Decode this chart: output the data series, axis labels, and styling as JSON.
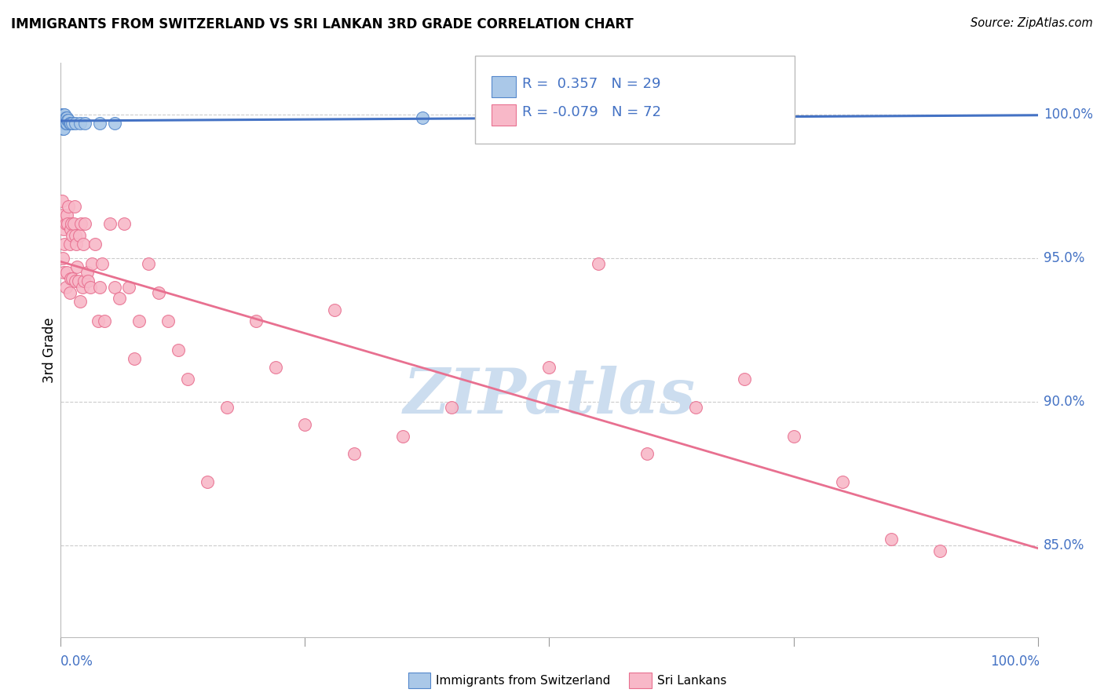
{
  "title": "IMMIGRANTS FROM SWITZERLAND VS SRI LANKAN 3RD GRADE CORRELATION CHART",
  "source": "Source: ZipAtlas.com",
  "ylabel": "3rd Grade",
  "ylabel_right_labels": [
    "100.0%",
    "95.0%",
    "90.0%",
    "85.0%"
  ],
  "ylabel_right_values": [
    1.0,
    0.95,
    0.9,
    0.85
  ],
  "xlim": [
    0.0,
    1.0
  ],
  "ylim": [
    0.818,
    1.018
  ],
  "legend_blue_r": "0.357",
  "legend_blue_n": "29",
  "legend_pink_r": "-0.079",
  "legend_pink_n": "72",
  "blue_scatter_x": [
    0.0005,
    0.001,
    0.001,
    0.0015,
    0.002,
    0.002,
    0.002,
    0.002,
    0.003,
    0.003,
    0.003,
    0.003,
    0.004,
    0.004,
    0.005,
    0.005,
    0.006,
    0.006,
    0.007,
    0.008,
    0.009,
    0.01,
    0.012,
    0.015,
    0.02,
    0.025,
    0.04,
    0.055,
    0.37
  ],
  "blue_scatter_y": [
    0.999,
    1.0,
    0.998,
    0.999,
    1.0,
    0.999,
    0.997,
    0.995,
    1.0,
    0.999,
    0.997,
    0.995,
    1.0,
    0.998,
    0.999,
    0.997,
    0.999,
    0.997,
    0.998,
    0.998,
    0.997,
    0.997,
    0.997,
    0.997,
    0.997,
    0.997,
    0.997,
    0.997,
    0.999
  ],
  "pink_scatter_x": [
    0.001,
    0.002,
    0.002,
    0.003,
    0.003,
    0.004,
    0.005,
    0.005,
    0.006,
    0.006,
    0.007,
    0.008,
    0.009,
    0.009,
    0.01,
    0.01,
    0.011,
    0.012,
    0.012,
    0.013,
    0.014,
    0.015,
    0.015,
    0.016,
    0.017,
    0.018,
    0.019,
    0.02,
    0.021,
    0.022,
    0.023,
    0.024,
    0.025,
    0.027,
    0.028,
    0.03,
    0.032,
    0.035,
    0.038,
    0.04,
    0.042,
    0.045,
    0.05,
    0.055,
    0.06,
    0.065,
    0.07,
    0.075,
    0.08,
    0.09,
    0.1,
    0.11,
    0.12,
    0.13,
    0.15,
    0.17,
    0.2,
    0.22,
    0.25,
    0.28,
    0.3,
    0.35,
    0.4,
    0.5,
    0.55,
    0.6,
    0.65,
    0.7,
    0.75,
    0.8,
    0.85,
    0.9
  ],
  "pink_scatter_y": [
    0.97,
    0.965,
    0.95,
    0.96,
    0.945,
    0.955,
    0.962,
    0.94,
    0.965,
    0.945,
    0.962,
    0.968,
    0.955,
    0.938,
    0.96,
    0.943,
    0.962,
    0.958,
    0.943,
    0.962,
    0.968,
    0.958,
    0.942,
    0.955,
    0.947,
    0.942,
    0.958,
    0.935,
    0.962,
    0.94,
    0.955,
    0.942,
    0.962,
    0.945,
    0.942,
    0.94,
    0.948,
    0.955,
    0.928,
    0.94,
    0.948,
    0.928,
    0.962,
    0.94,
    0.936,
    0.962,
    0.94,
    0.915,
    0.928,
    0.948,
    0.938,
    0.928,
    0.918,
    0.908,
    0.872,
    0.898,
    0.928,
    0.912,
    0.892,
    0.932,
    0.882,
    0.888,
    0.898,
    0.912,
    0.948,
    0.882,
    0.898,
    0.908,
    0.888,
    0.872,
    0.852,
    0.848
  ],
  "blue_color": "#aac8e8",
  "pink_color": "#f8b8c8",
  "blue_edge_color": "#5588cc",
  "pink_edge_color": "#e87090",
  "blue_line_color": "#4472c4",
  "pink_line_color": "#e87090",
  "grid_color": "#cccccc",
  "watermark_color": "#ccddef",
  "background_color": "#ffffff"
}
